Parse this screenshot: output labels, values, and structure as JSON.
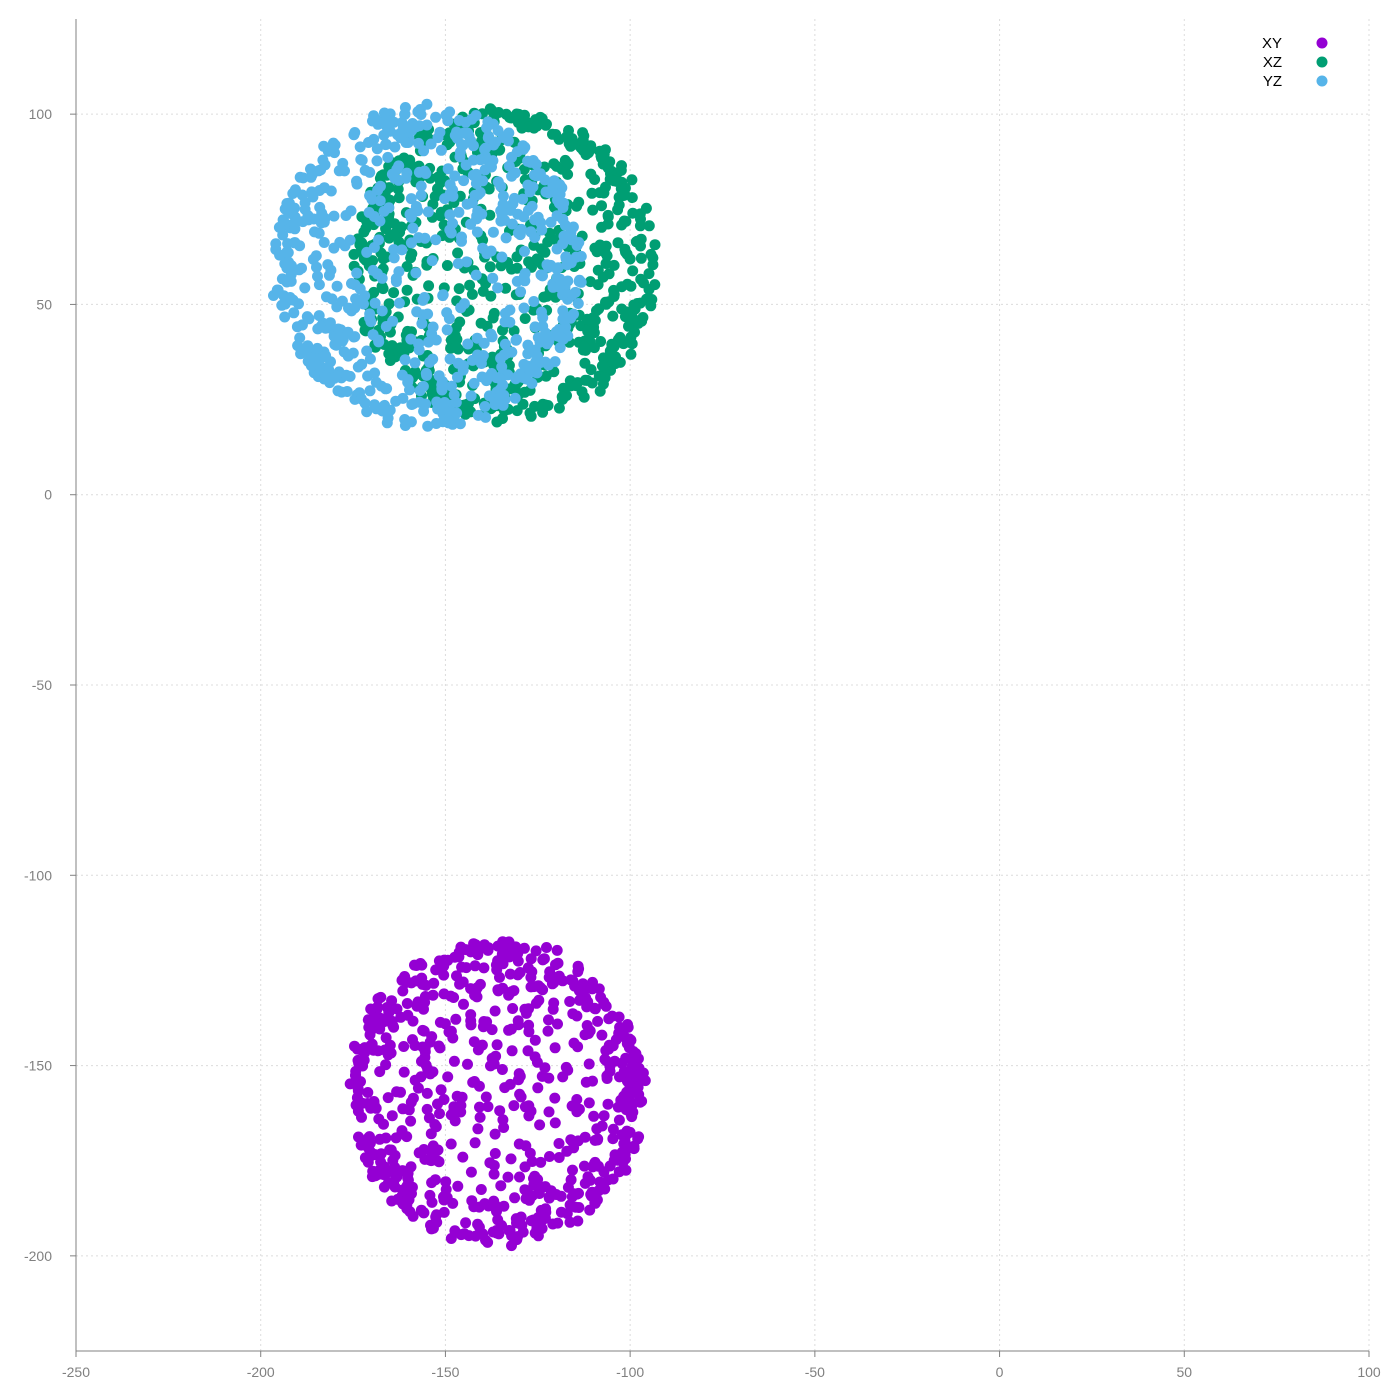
{
  "chart_data": {
    "type": "scatter",
    "title": "",
    "xlabel": "",
    "ylabel": "",
    "xlim": [
      -250,
      100
    ],
    "ylim": [
      -225,
      125
    ],
    "xticks": [
      -250,
      -200,
      -150,
      -100,
      -50,
      0,
      50,
      100
    ],
    "yticks": [
      -200,
      -150,
      -100,
      -50,
      0,
      50,
      100
    ],
    "grid": true,
    "legend_position": "top-right",
    "series": [
      {
        "name": "XY",
        "color": "#9400d3",
        "center": [
          -136,
          -157
        ],
        "radius": 40,
        "count": 700
      },
      {
        "name": "XZ",
        "color": "#009e73",
        "center": [
          -134,
          60
        ],
        "radius": 41,
        "count": 700
      },
      {
        "name": "YZ",
        "color": "#56b4e9",
        "center": [
          -155,
          60
        ],
        "radius": 42,
        "count": 700
      }
    ]
  }
}
